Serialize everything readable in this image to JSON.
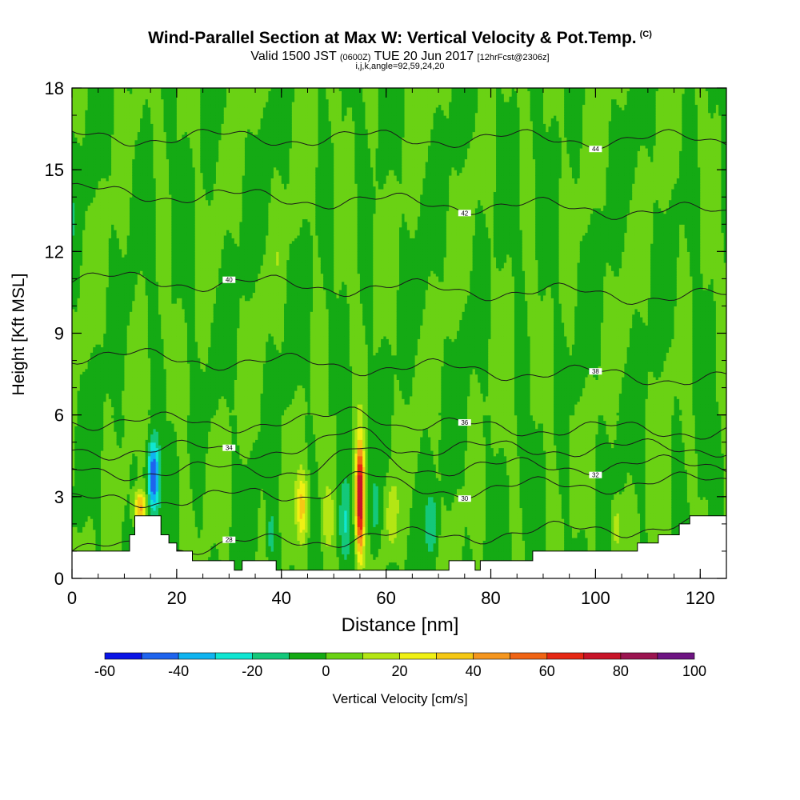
{
  "title": "Wind-Parallel Section at Max W: Vertical Velocity & Pot.Temp.",
  "title_mark": "(C)",
  "subtitle_main": "Valid 1500 JST",
  "subtitle_z": "(0600Z)",
  "subtitle_date": "TUE 20 Jun 2017",
  "subtitle_fcst": "[12hrFcst@2306z]",
  "params": "i,j,k,angle=92,59,24,20",
  "chart_data": {
    "type": "heatmap",
    "title": "Wind-Parallel Section at Max W: Vertical Velocity & Pot.Temp.",
    "xlabel": "Distance [nm]",
    "ylabel": "Height [Kft MSL]",
    "xlim": [
      0,
      125
    ],
    "ylim": [
      0,
      18
    ],
    "x_ticks": [
      "0",
      "20",
      "40",
      "60",
      "80",
      "100",
      "120"
    ],
    "y_ticks": [
      "0",
      "3",
      "6",
      "9",
      "12",
      "15",
      "18"
    ],
    "grid": false,
    "colorbar": {
      "label": "Vertical Velocity [cm/s]",
      "placement": "bottom",
      "ticks": [
        "-60",
        "-40",
        "-20",
        "0",
        "20",
        "40",
        "60",
        "80",
        "100"
      ],
      "levels": [
        -60,
        -50,
        -40,
        -30,
        -20,
        -10,
        0,
        10,
        20,
        30,
        40,
        50,
        60,
        70,
        80,
        90,
        100
      ],
      "colors": [
        "#0a14e6",
        "#1e64ee",
        "#10b4f0",
        "#10e6d2",
        "#14c87a",
        "#14aa14",
        "#6ad214",
        "#b4e614",
        "#f0f014",
        "#f5c814",
        "#f5961e",
        "#f06414",
        "#e62814",
        "#c81428",
        "#9b1450",
        "#6e1482"
      ]
    },
    "velocity_features": [
      {
        "x": 55,
        "z_bottom": 1,
        "z_top": 5,
        "peak_cm_s": 85
      },
      {
        "x": 15.5,
        "z_bottom": 2.5,
        "z_top": 5,
        "peak_cm_s": -50
      },
      {
        "x": 13,
        "z_bottom": 2,
        "z_top": 3.2,
        "peak_cm_s": 45
      },
      {
        "x": 44,
        "z_bottom": 1.5,
        "z_top": 3.8,
        "peak_cm_s": 30
      },
      {
        "x": 49,
        "z_bottom": 1,
        "z_top": 3.5,
        "peak_cm_s": 20
      },
      {
        "x": 38,
        "z_bottom": 0.5,
        "z_top": 2.5,
        "peak_cm_s": -15
      },
      {
        "x": 52,
        "z_bottom": 0.5,
        "z_top": 3.5,
        "peak_cm_s": -20
      },
      {
        "x": 58,
        "z_bottom": 1,
        "z_top": 4,
        "peak_cm_s": -15
      },
      {
        "x": 61,
        "z_bottom": 1,
        "z_top": 3.5,
        "peak_cm_s": 20
      },
      {
        "x": 69,
        "z_bottom": 1,
        "z_top": 3,
        "peak_cm_s": -15
      },
      {
        "x": 104,
        "z_bottom": 1,
        "z_top": 2.8,
        "peak_cm_s": 15
      }
    ],
    "theta_contours_c": [
      {
        "label": "28",
        "z_left": 1.0,
        "z_right": 2.0
      },
      {
        "label": "30",
        "z_left": 2.8,
        "z_right": 3.6
      },
      {
        "label": "32",
        "z_left": 3.9,
        "z_right": 4.2
      },
      {
        "label": "34",
        "z_left": 4.7,
        "z_right": 4.8
      },
      {
        "label": "36",
        "z_left": 5.8,
        "z_right": 5.4
      },
      {
        "label": "38",
        "z_left": 8.2,
        "z_right": 7.3
      },
      {
        "label": "40",
        "z_left": 11.0,
        "z_right": 10.3
      },
      {
        "label": "42",
        "z_left": 14.2,
        "z_right": 13.4
      },
      {
        "label": "44",
        "z_left": 16.2,
        "z_right": 16.1
      }
    ],
    "terrain": [
      [
        0,
        1.0
      ],
      [
        6,
        1.0
      ],
      [
        11,
        1.0
      ],
      [
        11,
        1.6
      ],
      [
        12,
        1.6
      ],
      [
        12,
        2.3
      ],
      [
        17,
        2.3
      ],
      [
        17,
        1.6
      ],
      [
        18.5,
        1.6
      ],
      [
        18.5,
        1.3
      ],
      [
        20,
        1.3
      ],
      [
        20,
        1.0
      ],
      [
        23,
        1.0
      ],
      [
        23,
        0.65
      ],
      [
        31,
        0.65
      ],
      [
        31,
        0.3
      ],
      [
        32.5,
        0.3
      ],
      [
        32.5,
        0.65
      ],
      [
        39,
        0.65
      ],
      [
        39,
        0.3
      ],
      [
        40,
        0.3
      ],
      [
        40,
        0.3
      ],
      [
        72,
        0.3
      ],
      [
        72,
        0.65
      ],
      [
        77,
        0.65
      ],
      [
        77,
        0.3
      ],
      [
        78,
        0.3
      ],
      [
        78,
        0.65
      ],
      [
        80,
        0.65
      ],
      [
        88,
        0.65
      ],
      [
        88,
        1.0
      ],
      [
        108,
        1.0
      ],
      [
        108,
        1.3
      ],
      [
        112,
        1.3
      ],
      [
        112,
        1.6
      ],
      [
        116,
        1.6
      ],
      [
        116,
        2.0
      ],
      [
        118,
        2.0
      ],
      [
        118,
        2.3
      ],
      [
        125,
        2.3
      ]
    ]
  }
}
